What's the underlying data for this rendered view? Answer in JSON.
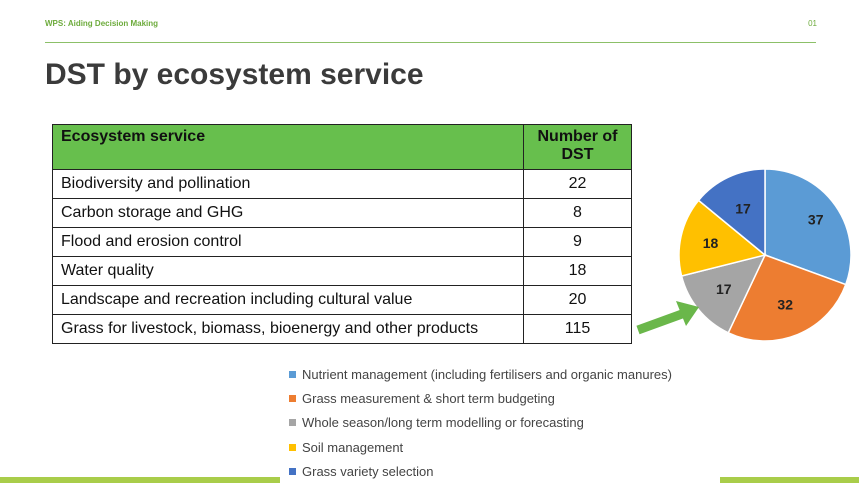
{
  "header": {
    "left_text": "WPS: Aiding Decision Making",
    "page_number": "01"
  },
  "title": "DST by ecosystem service",
  "table": {
    "headers": [
      "Ecosystem service",
      "Number of DST"
    ],
    "rows": [
      {
        "service": "Biodiversity and pollination",
        "count": "22"
      },
      {
        "service": "Carbon storage and GHG",
        "count": "8"
      },
      {
        "service": "Flood and erosion control",
        "count": "9"
      },
      {
        "service": "Water quality",
        "count": "18"
      },
      {
        "service": "Landscape and recreation including cultural value",
        "count": "20"
      },
      {
        "service": "Grass for livestock, biomass, bioenergy and other products",
        "count": "115"
      }
    ]
  },
  "arrow": {
    "color": "#6ab74a",
    "icon": "arrow-right-icon"
  },
  "chart_data": {
    "type": "pie",
    "title": "",
    "categories": [
      "Nutrient management (including fertilisers and organic manures)",
      "Grass measurement & short term budgeting",
      "Whole season/long term modelling or forecasting",
      "Soil management",
      "Grass variety selection"
    ],
    "values": [
      37,
      32,
      17,
      18,
      17
    ],
    "colors": [
      "#5b9bd5",
      "#ed7d31",
      "#a5a5a5",
      "#ffc000",
      "#4472c4"
    ],
    "data_labels": [
      "37",
      "32",
      "17",
      "18",
      "17"
    ],
    "legend_position": "bottom"
  },
  "footer": {
    "accent_color": "#a9cd4a"
  }
}
